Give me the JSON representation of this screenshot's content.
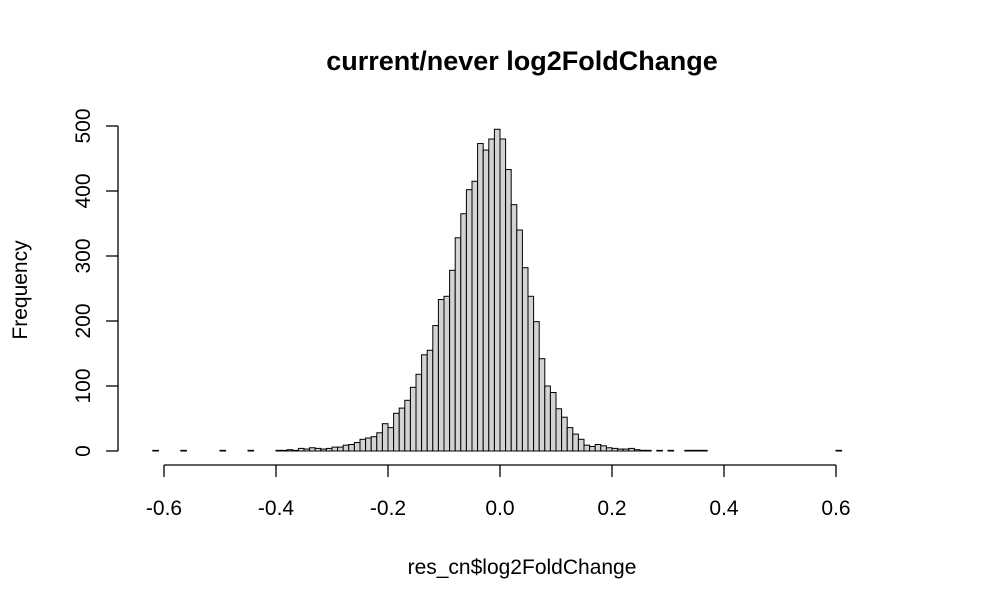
{
  "chart_data": {
    "type": "bar",
    "title": "current/never log2FoldChange",
    "xlabel": "res_cn$log2FoldChange",
    "ylabel": "Frequency",
    "x_ticks": [
      "-0.6",
      "-0.4",
      "-0.2",
      "0.0",
      "0.2",
      "0.4",
      "0.6"
    ],
    "y_ticks": [
      "0",
      "100",
      "200",
      "300",
      "400",
      "500"
    ],
    "xlim": [
      -0.63,
      0.71
    ],
    "ylim": [
      0,
      500
    ],
    "grid": false,
    "bin_width": 0.01,
    "bin_start": -0.63,
    "bar_fill": "#d3d3d3",
    "bar_stroke": "#000000",
    "values": [
      0,
      1,
      0,
      0,
      0,
      0,
      1,
      0,
      0,
      0,
      0,
      0,
      0,
      1,
      0,
      0,
      0,
      0,
      1,
      0,
      0,
      0,
      0,
      1,
      1,
      2,
      1,
      4,
      3,
      5,
      4,
      3,
      4,
      6,
      6,
      9,
      10,
      13,
      18,
      20,
      22,
      28,
      42,
      36,
      58,
      66,
      78,
      98,
      118,
      148,
      155,
      193,
      233,
      238,
      278,
      328,
      365,
      402,
      415,
      473,
      463,
      480,
      495,
      480,
      433,
      379,
      340,
      282,
      238,
      199,
      142,
      100,
      90,
      65,
      52,
      36,
      26,
      18,
      9,
      7,
      10,
      8,
      5,
      4,
      3,
      3,
      4,
      2,
      1,
      1,
      0,
      1,
      0,
      1,
      0,
      0,
      1,
      1,
      1,
      1,
      0,
      0,
      0,
      0,
      0,
      0,
      0,
      0,
      0,
      0,
      0,
      0,
      0,
      0,
      0,
      0,
      0,
      0,
      0,
      0,
      0,
      0,
      0,
      1
    ]
  }
}
